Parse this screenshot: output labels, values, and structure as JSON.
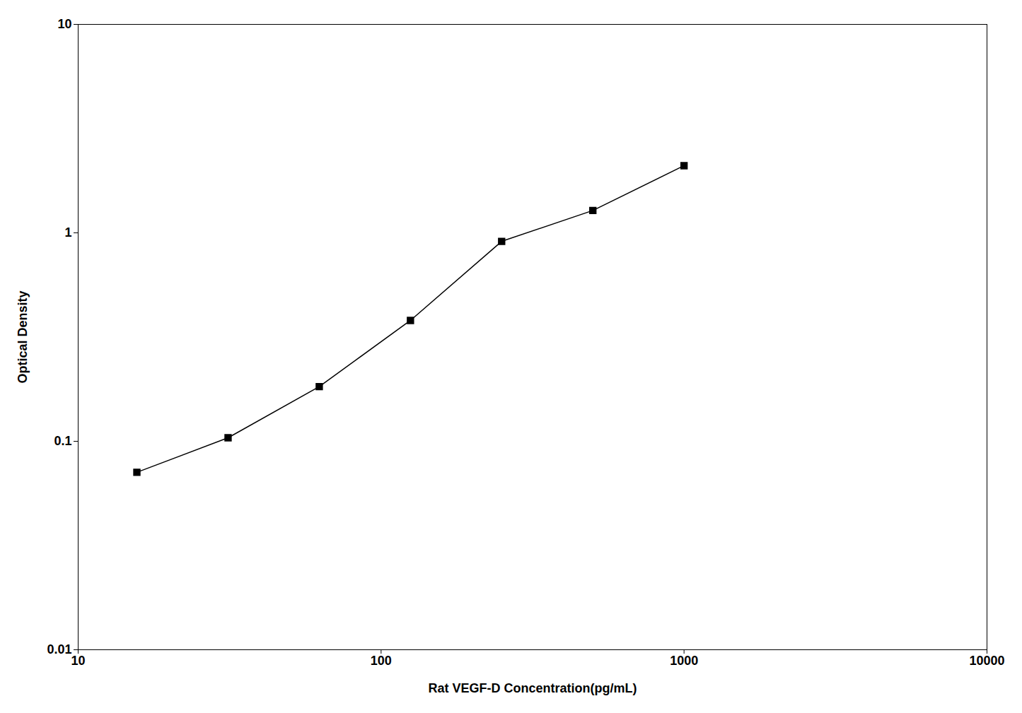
{
  "chart_data": {
    "type": "line",
    "xlabel": "Rat VEGF-D Concentration(pg/mL)",
    "ylabel": "Optical Density",
    "x": [
      15.625,
      31.25,
      62.5,
      125,
      250,
      500,
      1000
    ],
    "values": [
      0.071,
      0.104,
      0.183,
      0.38,
      0.91,
      1.28,
      2.1
    ],
    "color": "#000000",
    "marker": "square",
    "log": true,
    "xlim": [
      10,
      10000
    ],
    "ylim": [
      0.01,
      10
    ],
    "xticks": [
      10,
      100,
      1000,
      10000
    ],
    "yticks": [
      0.01,
      0.1,
      1,
      10
    ],
    "grid": false
  }
}
